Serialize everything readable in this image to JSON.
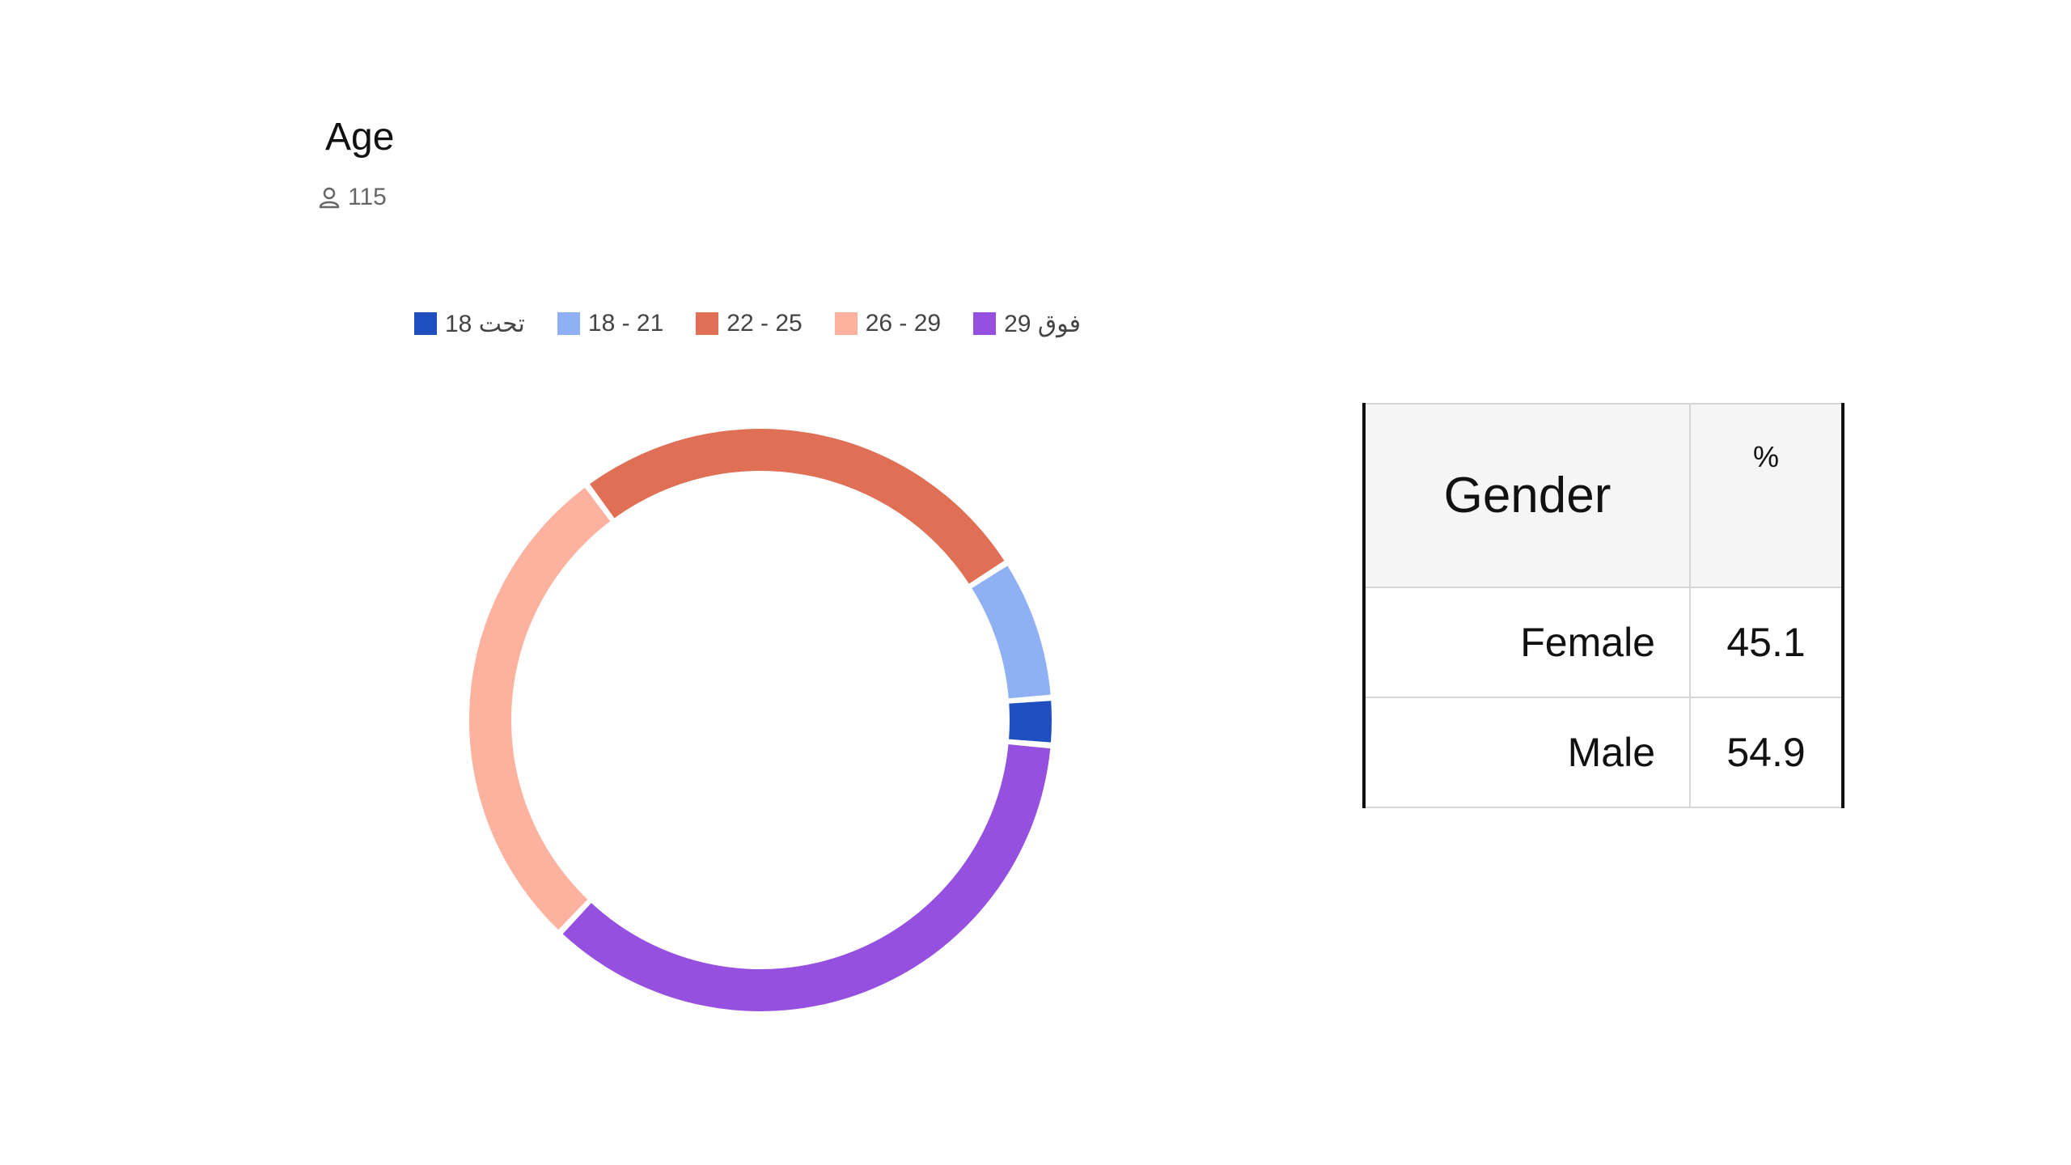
{
  "header": {
    "title": "Age",
    "respondent_icon": "person-icon",
    "respondent_count": "115"
  },
  "chart_data": {
    "type": "pie",
    "style": "donut",
    "title": "Age",
    "legend_position": "top",
    "categories": [
      "تحت 18",
      "18 - 21",
      "22 - 25",
      "26 - 29",
      "فوق 29"
    ],
    "values": [
      3,
      9,
      30,
      32,
      41
    ],
    "colors": [
      "#1f4fbf",
      "#8fb0f2",
      "#df6f55",
      "#fdb29f",
      "#9650e0"
    ]
  },
  "gender_table": {
    "headers": [
      "Gender",
      "%"
    ],
    "rows": [
      {
        "label": "Female",
        "value": "45.1"
      },
      {
        "label": "Male",
        "value": "54.9"
      }
    ]
  }
}
